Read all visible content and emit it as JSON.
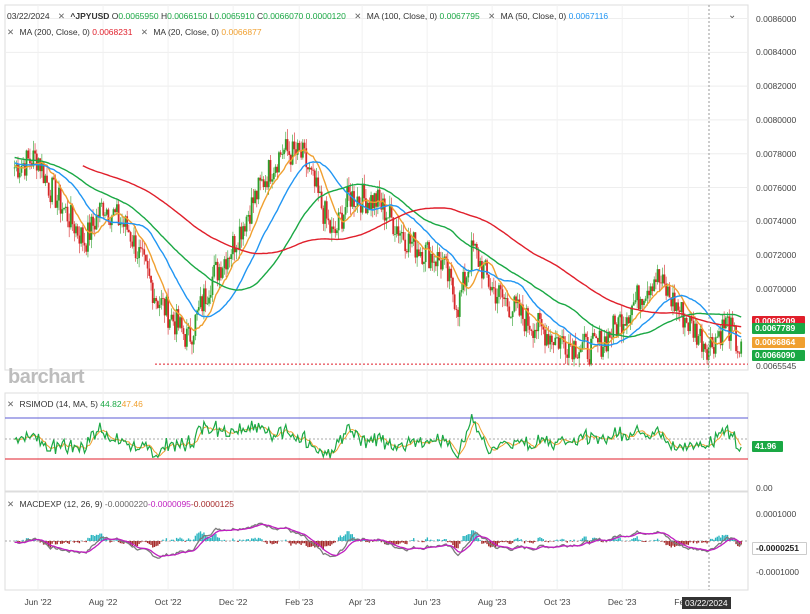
{
  "header": {
    "date": "03/22/2024",
    "symbol": "^JPYUSD",
    "open_label": "O",
    "open": "0.0065950",
    "high_label": "H",
    "high": "0.0066150",
    "low_label": "L",
    "low": "0.0065910",
    "close_label": "C",
    "close": "0.0066070",
    "change": "0.0000120",
    "ma100_label": "MA (100, Close, 0)",
    "ma100_value": "0.0067795",
    "ma50_label": "MA (50, Close, 0)",
    "ma50_value": "0.0067116",
    "ma200_label": "MA (200, Close, 0)",
    "ma200_value": "0.0068231",
    "ma20_label": "MA (20, Close, 0)",
    "ma20_value": "0.0066877"
  },
  "watermark": "barchart",
  "rsi_panel": {
    "label": "RSIMOD (14, MA, 5)",
    "v1": "44.82",
    "v2": "47.46",
    "badge": "41.96",
    "ticks": [
      "",
      "0.00"
    ]
  },
  "macd_panel": {
    "label": "MACDEXP (12, 26, 9)",
    "v1": "-0.0000220",
    "v2": "-0.0000095",
    "v3": "-0.0000125",
    "ticks": [
      "0.0001000",
      "-0.0001000"
    ],
    "badge": "-0.0000251"
  },
  "price_axis": {
    "ticks": [
      "0.0086000",
      "0.0084000",
      "0.0082000",
      "0.0080000",
      "0.0078000",
      "0.0076000",
      "0.0074000",
      "0.0072000",
      "0.0070000"
    ],
    "low_label": "0.0065545"
  },
  "badges": {
    "ma200": "0.0068209",
    "ma100": "0.0067789",
    "ma20": "0.0066864",
    "last": "0.0066090"
  },
  "x_labels": [
    "Jun '22",
    "Aug '22",
    "Oct '22",
    "Dec '22",
    "Feb '23",
    "Apr '23",
    "Jun '23",
    "Aug '23",
    "Oct '23",
    "Dec '23",
    "Feb '24"
  ],
  "crosshair_date": "03/22/2024",
  "colors": {
    "price_up": "#2ca02c",
    "price_down": "#d62728",
    "ma20": "#f0a030",
    "ma50": "#2196f3",
    "ma100": "#1aa844",
    "ma200": "#e01f2b",
    "rsi": "#1aa844",
    "rsi_ma": "#f0a030",
    "macd": "#7b7b7b",
    "signal": "#c020c0",
    "hist_pos": "#2bb5c0",
    "hist_neg": "#a52a2a"
  },
  "chart_data": {
    "type": "line",
    "title": "^JPYUSD",
    "x_range": [
      "2022-05",
      "2024-03-22"
    ],
    "ylim": [
      0.00652,
      0.00868
    ],
    "price_anchors": [
      [
        "2022-05-10",
        0.00772
      ],
      [
        "2022-06-01",
        0.00778
      ],
      [
        "2022-06-10",
        0.00762
      ],
      [
        "2022-07-15",
        0.00728
      ],
      [
        "2022-08-01",
        0.0075
      ],
      [
        "2022-08-25",
        0.00735
      ],
      [
        "2022-09-20",
        0.00695
      ],
      [
        "2022-10-20",
        0.0067
      ],
      [
        "2022-11-10",
        0.00705
      ],
      [
        "2022-11-30",
        0.00725
      ],
      [
        "2022-12-30",
        0.00765
      ],
      [
        "2023-01-16",
        0.00782
      ],
      [
        "2023-02-05",
        0.00778
      ],
      [
        "2023-03-05",
        0.0073
      ],
      [
        "2023-03-20",
        0.00755
      ],
      [
        "2023-04-15",
        0.00752
      ],
      [
        "2023-05-15",
        0.00728
      ],
      [
        "2023-06-15",
        0.00716
      ],
      [
        "2023-06-30",
        0.0069
      ],
      [
        "2023-07-14",
        0.00724
      ],
      [
        "2023-08-01",
        0.007
      ],
      [
        "2023-09-01",
        0.00682
      ],
      [
        "2023-10-01",
        0.0067
      ],
      [
        "2023-11-01",
        0.00664
      ],
      [
        "2023-11-15",
        0.0067
      ],
      [
        "2023-12-10",
        0.0069
      ],
      [
        "2024-01-01",
        0.00708
      ],
      [
        "2024-01-15",
        0.00695
      ],
      [
        "2024-02-01",
        0.0068
      ],
      [
        "2024-02-20",
        0.00666
      ],
      [
        "2024-03-08",
        0.0068
      ],
      [
        "2024-03-22",
        0.00661
      ]
    ],
    "ma20_last": 0.0066877,
    "ma50_last": 0.0067116,
    "ma100_last": 0.0067795,
    "ma200_last": 0.0068231,
    "support_level": 0.0065545
  }
}
